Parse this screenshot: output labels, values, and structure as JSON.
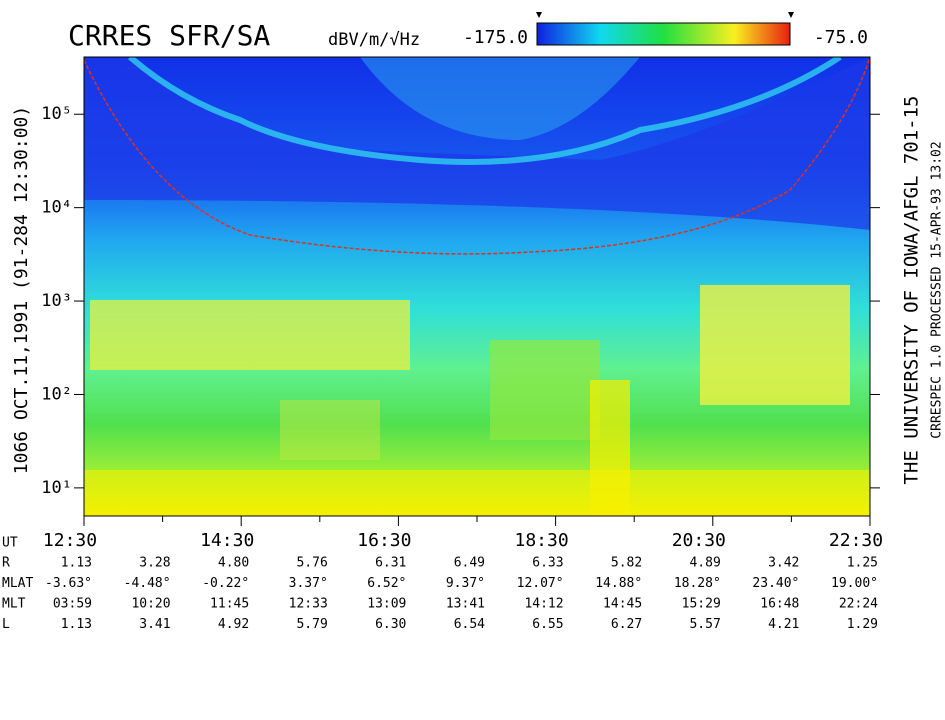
{
  "chart_data": {
    "type": "spectrogram",
    "title": "CRRES SFR/SA",
    "left_label": "1066   OCT.11,1991   (91-284 12:30:00)",
    "right_label": "THE UNIVERSITY OF IOWA/AFGL 701-15",
    "right_label2": "CRRESPEC 1.0   PROCESSED 15-APR-93  13:02",
    "colorbar": {
      "label": "dBV/m/√Hz",
      "clim": [
        {
          "value": -175,
          "label": "-175.0"
        },
        {
          "value": -75,
          "label": "-75.0"
        }
      ]
    },
    "ylog": true,
    "ylim": [
      5,
      410000
    ],
    "yticks": [
      {
        "value": 10,
        "label": "10¹"
      },
      {
        "value": 100,
        "label": "10²"
      },
      {
        "value": 1000,
        "label": "10³"
      },
      {
        "value": 10000,
        "label": "10⁴"
      },
      {
        "value": 100000,
        "label": "10⁵"
      }
    ],
    "x_axis_label": "UT",
    "xticks": [
      "12:30",
      "14:30",
      "16:30",
      "18:30",
      "20:30",
      "22:30"
    ],
    "ephemeris": [
      {
        "name": "R",
        "values": [
          "1.13",
          "3.28",
          "4.80",
          "5.76",
          "6.31",
          "6.49",
          "6.33",
          "5.82",
          "4.89",
          "3.42",
          "1.25"
        ]
      },
      {
        "name": "MLAT",
        "values": [
          "-3.63°",
          "-4.48°",
          "-0.22°",
          "3.37°",
          "6.52°",
          "9.37°",
          "12.07°",
          "14.88°",
          "18.28°",
          "23.40°",
          "19.00°"
        ]
      },
      {
        "name": "MLT",
        "values": [
          "03:59",
          "10:20",
          "11:45",
          "12:33",
          "13:09",
          "13:41",
          "14:12",
          "14:45",
          "15:29",
          "16:48",
          "22:24"
        ]
      },
      {
        "name": "L",
        "values": [
          "1.13",
          "3.41",
          "4.92",
          "5.79",
          "6.30",
          "6.54",
          "6.55",
          "6.27",
          "5.57",
          "4.21",
          "1.29"
        ]
      }
    ]
  }
}
